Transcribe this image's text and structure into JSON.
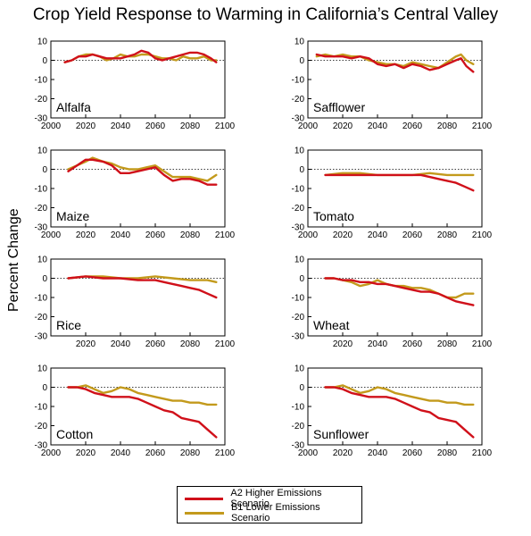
{
  "title": "Crop Yield Response to Warming in California’s Central Valley",
  "ylabel": "Percent Change",
  "legend": [
    {
      "label": "A2 Higher Emissions Scenario",
      "color": "#d0101a"
    },
    {
      "label": "B1 Lower Emissions Scenario",
      "color": "#c39a1c"
    }
  ],
  "chart_data": [
    {
      "type": "line",
      "title": "Alfalfa",
      "xlim": [
        2000,
        2100
      ],
      "ylim": [
        -30,
        10
      ],
      "xticks": [
        "2000",
        "2020",
        "2040",
        "2060",
        "2080",
        "2100"
      ],
      "yticks": [
        "10",
        "0",
        "-10",
        "-20",
        "-30"
      ],
      "reference_line": 0,
      "series": [
        {
          "name": "A2 Higher Emissions Scenario",
          "x": [
            2008,
            2012,
            2016,
            2020,
            2024,
            2028,
            2032,
            2036,
            2040,
            2044,
            2048,
            2052,
            2056,
            2060,
            2064,
            2068,
            2072,
            2076,
            2080,
            2084,
            2088,
            2092,
            2095
          ],
          "y": [
            -1,
            0,
            2,
            2,
            3,
            2,
            1,
            1,
            1,
            2,
            3,
            5,
            4,
            1,
            0,
            1,
            2,
            3,
            4,
            4,
            3,
            1,
            -1
          ]
        },
        {
          "name": "B1 Lower Emissions Scenario",
          "x": [
            2008,
            2012,
            2016,
            2020,
            2024,
            2028,
            2032,
            2036,
            2040,
            2044,
            2048,
            2052,
            2056,
            2060,
            2064,
            2068,
            2072,
            2076,
            2080,
            2084,
            2088,
            2092,
            2095
          ],
          "y": [
            -1,
            0,
            2,
            3,
            3,
            2,
            0,
            1,
            3,
            2,
            2,
            3,
            3,
            2,
            1,
            1,
            0,
            2,
            1,
            1,
            2,
            0,
            0
          ]
        }
      ]
    },
    {
      "type": "line",
      "title": "Safflower",
      "xlim": [
        2000,
        2100
      ],
      "ylim": [
        -30,
        10
      ],
      "xticks": [
        "2000",
        "2020",
        "2040",
        "2060",
        "2080",
        "2100"
      ],
      "yticks": [
        "10",
        "0",
        "-10",
        "-20",
        "-30"
      ],
      "reference_line": 0,
      "series": [
        {
          "name": "A2 Higher Emissions Scenario",
          "x": [
            2005,
            2010,
            2015,
            2020,
            2025,
            2030,
            2035,
            2040,
            2045,
            2050,
            2055,
            2060,
            2065,
            2070,
            2075,
            2080,
            2085,
            2088,
            2091,
            2095
          ],
          "y": [
            3,
            2,
            2,
            2,
            1,
            2,
            1,
            -2,
            -3,
            -2,
            -4,
            -2,
            -3,
            -5,
            -4,
            -2,
            0,
            1,
            -3,
            -6
          ]
        },
        {
          "name": "B1 Lower Emissions Scenario",
          "x": [
            2005,
            2010,
            2015,
            2020,
            2025,
            2030,
            2035,
            2040,
            2045,
            2050,
            2055,
            2060,
            2065,
            2070,
            2075,
            2080,
            2085,
            2088,
            2091,
            2095
          ],
          "y": [
            2,
            3,
            2,
            3,
            2,
            2,
            0,
            -1,
            -2,
            -2,
            -3,
            -1,
            -2,
            -3,
            -4,
            -1,
            2,
            3,
            0,
            -2
          ]
        }
      ]
    },
    {
      "type": "line",
      "title": "Maize",
      "xlim": [
        2000,
        2100
      ],
      "ylim": [
        -30,
        10
      ],
      "xticks": [
        "2000",
        "2020",
        "2040",
        "2060",
        "2080",
        "2100"
      ],
      "yticks": [
        "10",
        "0",
        "-10",
        "-20",
        "-30"
      ],
      "reference_line": 0,
      "series": [
        {
          "name": "A2 Higher Emissions Scenario",
          "x": [
            2010,
            2015,
            2020,
            2024,
            2030,
            2035,
            2040,
            2045,
            2050,
            2055,
            2060,
            2065,
            2070,
            2075,
            2080,
            2085,
            2090,
            2095
          ],
          "y": [
            -1,
            2,
            5,
            5,
            4,
            2,
            -2,
            -2,
            -1,
            0,
            1,
            -3,
            -6,
            -5,
            -5,
            -6,
            -8,
            -8
          ]
        },
        {
          "name": "B1 Lower Emissions Scenario",
          "x": [
            2010,
            2015,
            2020,
            2024,
            2030,
            2035,
            2040,
            2045,
            2050,
            2055,
            2060,
            2065,
            2070,
            2075,
            2080,
            2085,
            2090,
            2095
          ],
          "y": [
            0,
            2,
            4,
            6,
            4,
            3,
            1,
            0,
            0,
            1,
            2,
            -1,
            -4,
            -4,
            -4,
            -5,
            -6,
            -3
          ]
        }
      ]
    },
    {
      "type": "line",
      "title": "Tomato",
      "xlim": [
        2000,
        2100
      ],
      "ylim": [
        -30,
        10
      ],
      "xticks": [
        "2000",
        "2020",
        "2040",
        "2060",
        "2080",
        "2100"
      ],
      "yticks": [
        "10",
        "0",
        "-10",
        "-20",
        "-30"
      ],
      "reference_line": 0,
      "series": [
        {
          "name": "A2 Higher Emissions Scenario",
          "x": [
            2010,
            2020,
            2030,
            2040,
            2050,
            2060,
            2065,
            2070,
            2075,
            2080,
            2085,
            2090,
            2095
          ],
          "y": [
            -3,
            -3,
            -3,
            -3,
            -3,
            -3,
            -3,
            -4,
            -5,
            -6,
            -7,
            -9,
            -11
          ]
        },
        {
          "name": "B1 Lower Emissions Scenario",
          "x": [
            2010,
            2020,
            2030,
            2040,
            2050,
            2060,
            2070,
            2080,
            2090,
            2095
          ],
          "y": [
            -3,
            -2,
            -2,
            -3,
            -3,
            -3,
            -2,
            -3,
            -3,
            -3
          ]
        }
      ]
    },
    {
      "type": "line",
      "title": "Rice",
      "xlim": [
        2000,
        2100
      ],
      "ylim": [
        -30,
        10
      ],
      "xticks": [
        "2020",
        "2040",
        "2060",
        "2080",
        "2100"
      ],
      "yticks": [
        "10",
        "0",
        "-10",
        "-20",
        "-30"
      ],
      "reference_line": 0,
      "series": [
        {
          "name": "A2 Higher Emissions Scenario",
          "x": [
            2010,
            2020,
            2030,
            2040,
            2050,
            2060,
            2065,
            2070,
            2075,
            2080,
            2085,
            2090,
            2095
          ],
          "y": [
            0,
            1,
            0,
            0,
            -1,
            -1,
            -2,
            -3,
            -4,
            -5,
            -6,
            -8,
            -10
          ]
        },
        {
          "name": "B1 Lower Emissions Scenario",
          "x": [
            2010,
            2020,
            2030,
            2040,
            2050,
            2060,
            2070,
            2080,
            2090,
            2095
          ],
          "y": [
            0,
            1,
            1,
            0,
            0,
            1,
            0,
            -1,
            -1,
            -2
          ]
        }
      ]
    },
    {
      "type": "line",
      "title": "Wheat",
      "xlim": [
        2000,
        2100
      ],
      "ylim": [
        -30,
        10
      ],
      "xticks": [
        "2020",
        "2040",
        "2060",
        "2080",
        "2100"
      ],
      "yticks": [
        "10",
        "0",
        "-10",
        "-20",
        "-30"
      ],
      "reference_line": 0,
      "series": [
        {
          "name": "A2 Higher Emissions Scenario",
          "x": [
            2010,
            2015,
            2020,
            2025,
            2030,
            2035,
            2040,
            2045,
            2050,
            2055,
            2060,
            2065,
            2070,
            2075,
            2080,
            2085,
            2090,
            2095
          ],
          "y": [
            0,
            0,
            -1,
            -1,
            -2,
            -2,
            -3,
            -3,
            -4,
            -5,
            -6,
            -7,
            -7,
            -8,
            -10,
            -12,
            -13,
            -14
          ]
        },
        {
          "name": "B1 Lower Emissions Scenario",
          "x": [
            2010,
            2015,
            2020,
            2025,
            2030,
            2035,
            2040,
            2045,
            2050,
            2055,
            2060,
            2065,
            2070,
            2075,
            2080,
            2085,
            2090,
            2095
          ],
          "y": [
            0,
            0,
            -1,
            -2,
            -4,
            -3,
            -1,
            -3,
            -4,
            -4,
            -5,
            -5,
            -6,
            -8,
            -10,
            -10,
            -8,
            -8
          ]
        }
      ]
    },
    {
      "type": "line",
      "title": "Cotton",
      "xlim": [
        2000,
        2100
      ],
      "ylim": [
        -30,
        10
      ],
      "xticks": [
        "2000",
        "2020",
        "2040",
        "2060",
        "2080",
        "2100"
      ],
      "yticks": [
        "10",
        "0",
        "-10",
        "-20",
        "-30"
      ],
      "reference_line": 0,
      "series": [
        {
          "name": "A2 Higher Emissions Scenario",
          "x": [
            2010,
            2015,
            2020,
            2025,
            2030,
            2035,
            2040,
            2045,
            2050,
            2055,
            2060,
            2065,
            2070,
            2075,
            2080,
            2085,
            2090,
            2095
          ],
          "y": [
            0,
            0,
            -1,
            -3,
            -4,
            -5,
            -5,
            -5,
            -6,
            -8,
            -10,
            -12,
            -13,
            -16,
            -17,
            -18,
            -22,
            -26
          ]
        },
        {
          "name": "B1 Lower Emissions Scenario",
          "x": [
            2010,
            2015,
            2020,
            2025,
            2030,
            2035,
            2040,
            2045,
            2050,
            2055,
            2060,
            2065,
            2070,
            2075,
            2080,
            2085,
            2090,
            2095
          ],
          "y": [
            0,
            0,
            1,
            -1,
            -3,
            -2,
            0,
            -1,
            -3,
            -4,
            -5,
            -6,
            -7,
            -7,
            -8,
            -8,
            -9,
            -9
          ]
        }
      ]
    },
    {
      "type": "line",
      "title": "Sunflower",
      "xlim": [
        2000,
        2100
      ],
      "ylim": [
        -30,
        10
      ],
      "xticks": [
        "2000",
        "2020",
        "2040",
        "2060",
        "2080",
        "2100"
      ],
      "yticks": [
        "10",
        "0",
        "-10",
        "-20",
        "-30"
      ],
      "reference_line": 0,
      "series": [
        {
          "name": "A2 Higher Emissions Scenario",
          "x": [
            2010,
            2015,
            2020,
            2025,
            2030,
            2035,
            2040,
            2045,
            2050,
            2055,
            2060,
            2065,
            2070,
            2075,
            2080,
            2085,
            2090,
            2095
          ],
          "y": [
            0,
            0,
            -1,
            -3,
            -4,
            -5,
            -5,
            -5,
            -6,
            -8,
            -10,
            -12,
            -13,
            -16,
            -17,
            -18,
            -22,
            -26
          ]
        },
        {
          "name": "B1 Lower Emissions Scenario",
          "x": [
            2010,
            2015,
            2020,
            2025,
            2030,
            2035,
            2040,
            2045,
            2050,
            2055,
            2060,
            2065,
            2070,
            2075,
            2080,
            2085,
            2090,
            2095
          ],
          "y": [
            0,
            0,
            1,
            -1,
            -3,
            -2,
            0,
            -1,
            -3,
            -4,
            -5,
            -6,
            -7,
            -7,
            -8,
            -8,
            -9,
            -9
          ]
        }
      ]
    }
  ]
}
